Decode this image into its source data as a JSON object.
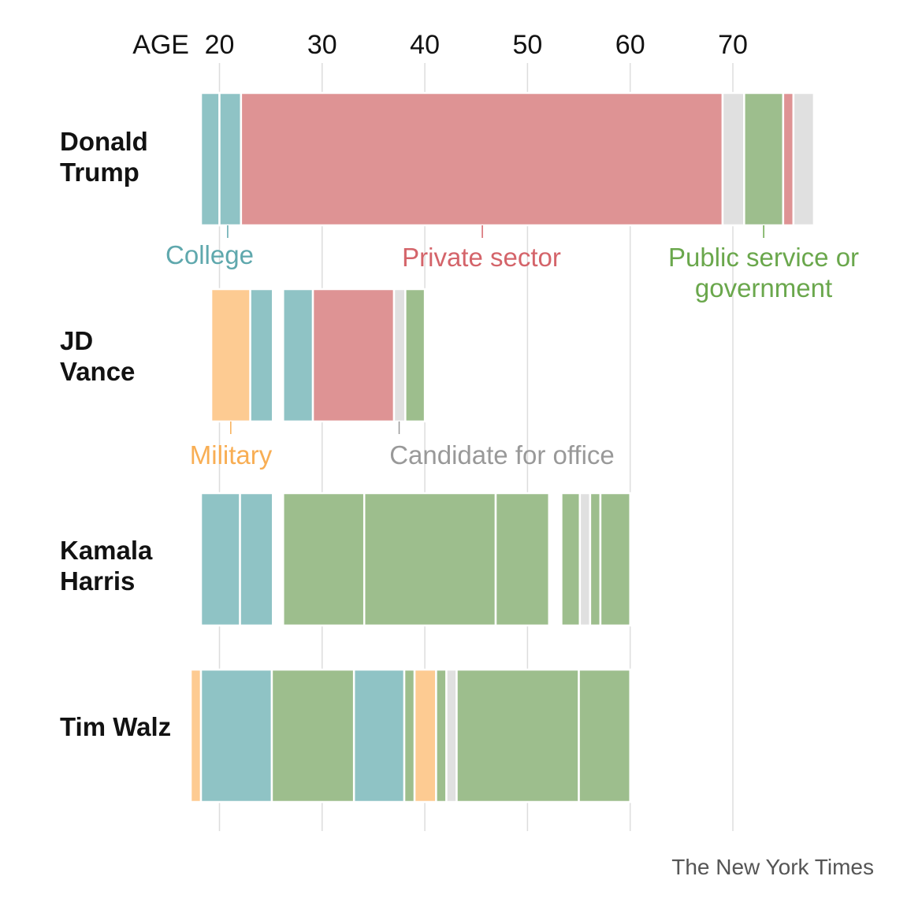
{
  "chart_data": {
    "type": "bar",
    "axis_label": "AGE",
    "xlim": [
      18,
      78
    ],
    "ticks": [
      20,
      30,
      40,
      50,
      60,
      70
    ],
    "grid": true,
    "colors": {
      "college": "#8fc3c5",
      "private": "#de9394",
      "public": "#9dbe8d",
      "military": "#fdcb92",
      "candidate": "#e0e0e0"
    },
    "annotation_colors": {
      "college": "#5fa8ad",
      "private": "#d4646a",
      "public": "#6aa74c",
      "military": "#f8ae54",
      "candidate": "#999999"
    },
    "rows": [
      {
        "name_lines": [
          "Donald",
          "Trump"
        ],
        "segments": [
          {
            "category": "college",
            "start": 18.2,
            "end": 20.0
          },
          {
            "category": "college",
            "start": 20.0,
            "end": 22.1
          },
          {
            "category": "private",
            "start": 22.1,
            "end": 69.0
          },
          {
            "category": "candidate",
            "start": 69.0,
            "end": 71.1
          },
          {
            "category": "public",
            "start": 71.1,
            "end": 74.9
          },
          {
            "category": "private",
            "start": 74.9,
            "end": 75.9
          },
          {
            "category": "candidate",
            "start": 75.9,
            "end": 77.9
          }
        ]
      },
      {
        "name_lines": [
          "JD",
          "Vance"
        ],
        "segments": [
          {
            "category": "military",
            "start": 19.2,
            "end": 23.0
          },
          {
            "category": "college",
            "start": 23.0,
            "end": 25.2
          },
          {
            "category": "college",
            "start": 26.2,
            "end": 29.1
          },
          {
            "category": "private",
            "start": 29.1,
            "end": 37.0
          },
          {
            "category": "candidate",
            "start": 37.0,
            "end": 38.1
          },
          {
            "category": "public",
            "start": 38.1,
            "end": 40.0
          }
        ]
      },
      {
        "name_lines": [
          "Kamala",
          "Harris"
        ],
        "segments": [
          {
            "category": "college",
            "start": 18.2,
            "end": 22.0
          },
          {
            "category": "college",
            "start": 22.0,
            "end": 25.2
          },
          {
            "category": "public",
            "start": 26.2,
            "end": 34.1
          },
          {
            "category": "public",
            "start": 34.1,
            "end": 46.9
          },
          {
            "category": "public",
            "start": 46.9,
            "end": 52.1
          },
          {
            "category": "public",
            "start": 53.3,
            "end": 55.1
          },
          {
            "category": "candidate",
            "start": 55.1,
            "end": 56.1
          },
          {
            "category": "public",
            "start": 56.1,
            "end": 57.1
          },
          {
            "category": "public",
            "start": 57.1,
            "end": 60.0
          }
        ]
      },
      {
        "name_lines": [
          "Tim Walz"
        ],
        "segments": [
          {
            "category": "military",
            "start": 17.2,
            "end": 18.2
          },
          {
            "category": "college",
            "start": 18.2,
            "end": 25.1
          },
          {
            "category": "public",
            "start": 25.1,
            "end": 33.1
          },
          {
            "category": "college",
            "start": 33.1,
            "end": 38.0
          },
          {
            "category": "public",
            "start": 38.0,
            "end": 39.0
          },
          {
            "category": "military",
            "start": 39.0,
            "end": 41.1
          },
          {
            "category": "public",
            "start": 41.1,
            "end": 42.1
          },
          {
            "category": "candidate",
            "start": 42.1,
            "end": 43.1
          },
          {
            "category": "public",
            "start": 43.1,
            "end": 55.0
          },
          {
            "category": "public",
            "start": 55.0,
            "end": 60.0
          }
        ]
      }
    ],
    "annotations": [
      {
        "category": "college",
        "lines": [
          "College"
        ],
        "pointer_age": 20.8,
        "row": 0
      },
      {
        "category": "private",
        "lines": [
          "Private sector"
        ],
        "pointer_age": 45.6,
        "row": 0
      },
      {
        "category": "public",
        "lines": [
          "Public service or",
          "government"
        ],
        "pointer_age": 73.0,
        "row": 0
      },
      {
        "category": "military",
        "lines": [
          "Military"
        ],
        "pointer_age": 21.1,
        "row": 1
      },
      {
        "category": "candidate",
        "lines": [
          "Candidate for office"
        ],
        "pointer_age": 37.5,
        "row": 1
      }
    ]
  },
  "credit": "The New York Times"
}
